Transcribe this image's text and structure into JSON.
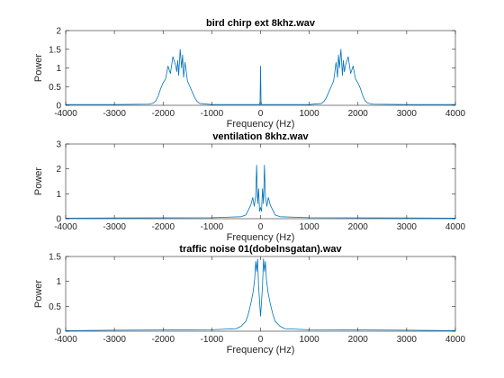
{
  "figure": {
    "background": "#ffffff"
  },
  "chart_data": [
    {
      "type": "line",
      "title": "bird chirp ext 8khz.wav",
      "xlabel": "Frequency (Hz)",
      "ylabel": "Power",
      "xlim": [
        -4000,
        4000
      ],
      "ylim": [
        0,
        2
      ],
      "xticks": [
        -4000,
        -3000,
        -2000,
        -1000,
        0,
        1000,
        2000,
        3000,
        4000
      ],
      "yticks": [
        0,
        0.5,
        1,
        1.5,
        2
      ],
      "series": [
        {
          "color": "#0072bd",
          "x": [
            -4000,
            -3000,
            -2300,
            -2200,
            -2150,
            -2100,
            -2050,
            -2000,
            -1950,
            -1900,
            -1850,
            -1800,
            -1750,
            -1720,
            -1700,
            -1680,
            -1650,
            -1620,
            -1600,
            -1580,
            -1550,
            -1500,
            -1450,
            -1400,
            -1350,
            -1300,
            -1250,
            -1000,
            -20,
            -10,
            0,
            10,
            20,
            1000,
            1250,
            1300,
            1350,
            1400,
            1450,
            1500,
            1550,
            1580,
            1600,
            1620,
            1650,
            1680,
            1700,
            1720,
            1750,
            1800,
            1850,
            1900,
            1950,
            2000,
            2050,
            2100,
            2150,
            2200,
            2300,
            3000,
            4000
          ],
          "y": [
            0.02,
            0.02,
            0.03,
            0.06,
            0.12,
            0.25,
            0.45,
            0.6,
            0.7,
            1.05,
            0.85,
            1.3,
            1.1,
            0.9,
            1.2,
            0.8,
            1.5,
            1.0,
            1.35,
            0.75,
            1.15,
            0.65,
            0.5,
            0.35,
            0.2,
            0.1,
            0.05,
            0.02,
            0.02,
            0.1,
            1.05,
            0.1,
            0.02,
            0.02,
            0.05,
            0.1,
            0.2,
            0.35,
            0.5,
            0.65,
            1.15,
            0.75,
            1.35,
            1.0,
            1.5,
            0.8,
            1.2,
            0.9,
            1.1,
            1.3,
            0.85,
            1.05,
            0.7,
            0.6,
            0.45,
            0.25,
            0.12,
            0.06,
            0.03,
            0.02,
            0.02
          ]
        }
      ]
    },
    {
      "type": "line",
      "title": "ventilation 8khz.wav",
      "xlabel": "Frequency (Hz)",
      "ylabel": "Power",
      "xlim": [
        -4000,
        4000
      ],
      "ylim": [
        0,
        3
      ],
      "xticks": [
        -4000,
        -3000,
        -2000,
        -1000,
        0,
        1000,
        2000,
        3000,
        4000
      ],
      "yticks": [
        0,
        1,
        2,
        3
      ],
      "series": [
        {
          "color": "#0072bd",
          "x": [
            -4000,
            -3000,
            -1000,
            -400,
            -300,
            -250,
            -200,
            -160,
            -130,
            -100,
            -80,
            -60,
            -40,
            -20,
            0,
            20,
            40,
            60,
            80,
            100,
            130,
            160,
            200,
            250,
            300,
            400,
            1000,
            3000,
            4000
          ],
          "y": [
            0.02,
            0.03,
            0.04,
            0.08,
            0.15,
            0.35,
            0.55,
            0.85,
            0.5,
            0.9,
            2.15,
            0.6,
            1.2,
            0.3,
            0.45,
            0.3,
            1.2,
            0.6,
            2.15,
            0.9,
            0.5,
            0.85,
            0.55,
            0.35,
            0.15,
            0.08,
            0.04,
            0.03,
            0.02
          ]
        }
      ]
    },
    {
      "type": "line",
      "title": "traffic noise 01(dobelnsgatan).wav",
      "xlabel": "Frequency (Hz)",
      "ylabel": "Power",
      "xlim": [
        -4000,
        4000
      ],
      "ylim": [
        0,
        1.5
      ],
      "xticks": [
        -4000,
        -3000,
        -2000,
        -1000,
        0,
        1000,
        2000,
        3000,
        4000
      ],
      "yticks": [
        0,
        0.5,
        1,
        1.5
      ],
      "series": [
        {
          "color": "#0072bd",
          "x": [
            -4000,
            -3000,
            -1000,
            -500,
            -400,
            -300,
            -250,
            -200,
            -150,
            -120,
            -100,
            -80,
            -60,
            -40,
            -20,
            0,
            20,
            40,
            60,
            80,
            100,
            120,
            150,
            200,
            250,
            300,
            400,
            500,
            1000,
            3000,
            4000
          ],
          "y": [
            0.01,
            0.02,
            0.03,
            0.05,
            0.1,
            0.2,
            0.35,
            0.55,
            0.8,
            1.05,
            1.4,
            1.2,
            1.45,
            0.9,
            0.6,
            0.3,
            0.6,
            0.9,
            1.45,
            1.2,
            1.4,
            1.05,
            0.8,
            0.55,
            0.35,
            0.2,
            0.1,
            0.05,
            0.03,
            0.02,
            0.01
          ]
        }
      ]
    }
  ]
}
